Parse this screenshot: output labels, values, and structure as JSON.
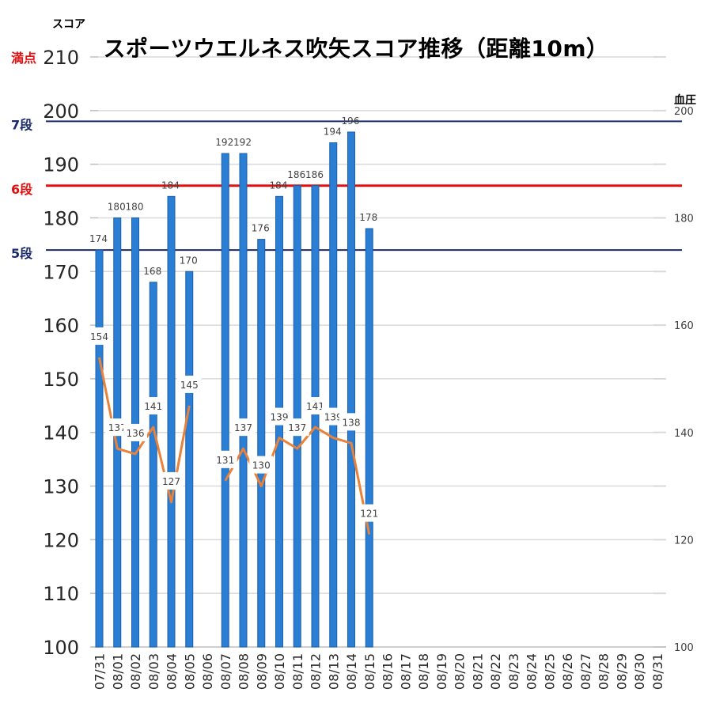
{
  "chart_data": {
    "type": "bar",
    "title": "スポーツウエルネス吹矢スコア推移（距離10m）",
    "ylabel": "スコア",
    "ylabel_right": "血圧",
    "categories": [
      "07/31",
      "08/01",
      "08/02",
      "08/03",
      "08/04",
      "08/05",
      "08/06",
      "08/07",
      "08/08",
      "08/09",
      "08/10",
      "08/11",
      "08/12",
      "08/13",
      "08/14",
      "08/15",
      "08/16",
      "08/17",
      "08/18",
      "08/19",
      "08/20",
      "08/21",
      "08/22",
      "08/23",
      "08/24",
      "08/25",
      "08/26",
      "08/27",
      "08/28",
      "08/29",
      "08/30",
      "08/31"
    ],
    "ylim": [
      100,
      210
    ],
    "yticks": [
      "100",
      "110",
      "120",
      "130",
      "140",
      "150",
      "160",
      "170",
      "180",
      "190",
      "200",
      "210"
    ],
    "y2lim": [
      100,
      200
    ],
    "y2ticks": [
      "100",
      "120",
      "140",
      "160",
      "180",
      "200"
    ],
    "grid": true,
    "series": [
      {
        "kind": "bar",
        "axis": "left",
        "color": "#1f6fc1",
        "values": [
          174,
          180,
          180,
          168,
          184,
          170,
          null,
          192,
          192,
          176,
          184,
          186,
          186,
          194,
          196,
          178,
          null,
          null,
          null,
          null,
          null,
          null,
          null,
          null,
          null,
          null,
          null,
          null,
          null,
          null,
          null,
          null
        ],
        "labels": [
          "174",
          "180",
          "180",
          "168",
          "184",
          "170",
          "",
          "192",
          "192",
          "176",
          "184",
          "186",
          "186",
          "194",
          "196",
          "178",
          "",
          "",
          "",
          "",
          "",
          "",
          "",
          "",
          "",
          "",
          "",
          "",
          "",
          "",
          "",
          ""
        ]
      },
      {
        "kind": "line",
        "axis": "right",
        "color": "#e8823a",
        "values": [
          154,
          137,
          136,
          141,
          127,
          145,
          null,
          131,
          137,
          130,
          139,
          137,
          141,
          139,
          138,
          121,
          null,
          null,
          null,
          null,
          null,
          null,
          null,
          null,
          null,
          null,
          null,
          null,
          null,
          null,
          null,
          null
        ],
        "labels": [
          "154",
          "137",
          "136",
          "141",
          "127",
          "145",
          "",
          "131",
          "137",
          "130",
          "139",
          "137",
          "141",
          "139",
          "138",
          "121",
          "",
          "",
          "",
          "",
          "",
          "",
          "",
          "",
          "",
          "",
          "",
          "",
          "",
          "",
          "",
          ""
        ]
      }
    ],
    "reference_lines": [
      {
        "label": "満点",
        "value": 210,
        "color": "#e01010"
      },
      {
        "label": "7段",
        "value": 198,
        "color": "#1a2a6c"
      },
      {
        "label": "6段",
        "value": 186,
        "color": "#e01010"
      },
      {
        "label": "5段",
        "value": 174,
        "color": "#1a2a6c"
      }
    ]
  }
}
